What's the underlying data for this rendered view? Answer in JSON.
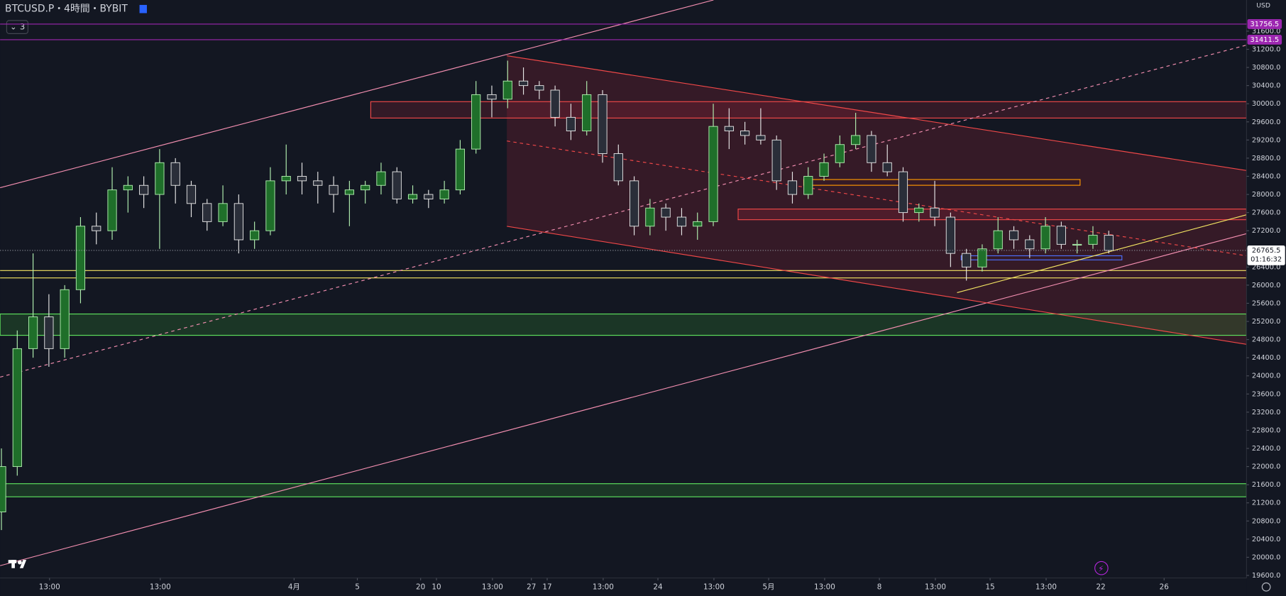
{
  "chart_data": {
    "type": "candlestick",
    "title": "BTCUSD.P・4時間・BYBIT",
    "indicator_count": 3,
    "currency": "USD",
    "up_color": "#b2f0b0",
    "down_color": "#e6e6e6",
    "x": [
      -6.5,
      -5.5,
      -4.5,
      -3.5,
      -2.5,
      -1.5,
      -0.5,
      0.5,
      1.5,
      2.5,
      3.5,
      4.5,
      5.5,
      6.5,
      7.5,
      8.5,
      9.5,
      10.5,
      11.5,
      12.5,
      13.5,
      14.5,
      15.5,
      16.5,
      17.5,
      18.5,
      19.5,
      20.5,
      21.5,
      22.5,
      23.5,
      24.5,
      25.5,
      26.5,
      27.5,
      28.5,
      29.5,
      30.5,
      31.5,
      32.5,
      33.5,
      34.5,
      35.5,
      36.5,
      37.5,
      38.5,
      39.5,
      40.5,
      41.5,
      42.5,
      43.5,
      44.5,
      45.5,
      46.5,
      47.5,
      48.5,
      49.5,
      50.5,
      51.5,
      52.5,
      53.5,
      54.5,
      55.5,
      56.5,
      57.5,
      58.5,
      59.5,
      60.5,
      61.5,
      62.5,
      63.5
    ],
    "open": [
      21000,
      22000,
      24600,
      25300,
      24600,
      25900,
      27300,
      27200,
      28100,
      28200,
      28000,
      28700,
      28200,
      27800,
      27400,
      27800,
      27000,
      27200,
      28300,
      28400,
      28300,
      28200,
      28000,
      28100,
      28200,
      28500,
      27900,
      28000,
      27900,
      28100,
      29000,
      30200,
      30100,
      30500,
      30400,
      30300,
      29700,
      29400,
      30200,
      28900,
      28300,
      27300,
      27700,
      27500,
      27300,
      27400,
      29500,
      29400,
      29300,
      29200,
      28300,
      28000,
      28400,
      28700,
      29100,
      29300,
      28700,
      28500,
      27600,
      27700,
      27500,
      26700,
      26400,
      26800,
      27200,
      27000,
      26800,
      27300,
      26900,
      26900,
      27100
    ],
    "high": [
      22400,
      25000,
      26700,
      25800,
      26000,
      27500,
      27600,
      28600,
      28400,
      28400,
      29000,
      28800,
      28300,
      27900,
      28200,
      28000,
      27400,
      28600,
      29100,
      28700,
      28500,
      28400,
      28300,
      28300,
      28700,
      28600,
      28200,
      28100,
      28300,
      29200,
      30500,
      30400,
      30950,
      30800,
      30500,
      30400,
      30000,
      30500,
      30300,
      29100,
      28400,
      27900,
      27800,
      27700,
      27600,
      30000,
      29900,
      29600,
      29900,
      29300,
      28500,
      28600,
      28900,
      29300,
      29800,
      29400,
      29100,
      28600,
      27800,
      28300,
      27600,
      26800,
      26900,
      27500,
      27300,
      27100,
      27500,
      27400,
      27000,
      27300,
      27200
    ],
    "low": [
      20600,
      21800,
      24400,
      24200,
      24400,
      25600,
      26900,
      27000,
      27600,
      27700,
      26800,
      27800,
      27500,
      27200,
      27300,
      26700,
      26800,
      27100,
      28000,
      28000,
      27800,
      27600,
      27300,
      27800,
      28000,
      27800,
      27800,
      27700,
      27800,
      28000,
      28900,
      29700,
      29900,
      30200,
      30100,
      29500,
      29200,
      29300,
      28700,
      28200,
      27100,
      27100,
      27200,
      27100,
      27000,
      27300,
      29000,
      29100,
      29100,
      28100,
      27800,
      27900,
      28300,
      28600,
      29000,
      28500,
      28400,
      27400,
      27400,
      27300,
      26400,
      26100,
      26300,
      26700,
      26800,
      26600,
      26700,
      26800,
      26700,
      26800,
      26700
    ],
    "close": [
      22000,
      24600,
      25300,
      24600,
      25900,
      27300,
      27200,
      28100,
      28200,
      28000,
      28700,
      28200,
      27800,
      27400,
      27800,
      27000,
      27200,
      28300,
      28400,
      28300,
      28200,
      28000,
      28100,
      28200,
      28500,
      27900,
      28000,
      27900,
      28100,
      29000,
      30200,
      30100,
      30500,
      30400,
      30300,
      29700,
      29400,
      30200,
      28900,
      28300,
      27300,
      27700,
      27500,
      27300,
      27400,
      29500,
      29400,
      29300,
      29200,
      28300,
      28000,
      28400,
      28700,
      29100,
      29300,
      28700,
      28500,
      27600,
      27700,
      27500,
      26700,
      26400,
      26800,
      27200,
      27000,
      26800,
      27300,
      26900,
      26900,
      27100,
      26765.5
    ],
    "xlim": [
      -6.584,
      72.21
    ],
    "ylim": [
      19544,
      32287
    ],
    "xticks": [
      {
        "value": -3.46,
        "label": "13:00"
      },
      20,
      {
        "value": 3.54,
        "label": "13:00"
      },
      27,
      {
        "value": 12,
        "label": "4月"
      },
      {
        "value": 16,
        "label": "5"
      },
      {
        "value": 21,
        "label": "10"
      },
      {
        "value": 24.54,
        "label": "13:00"
      },
      {
        "value": 28,
        "label": "17"
      },
      {
        "value": 31.54,
        "label": "13:00"
      },
      {
        "value": 35,
        "label": "24"
      },
      {
        "value": 38.54,
        "label": "13:00"
      },
      {
        "value": 42,
        "label": "5月"
      },
      {
        "value": 45.54,
        "label": "13:00"
      },
      {
        "value": 49,
        "label": "8"
      },
      {
        "value": 52.54,
        "label": "13:00"
      },
      {
        "value": 56,
        "label": "15"
      },
      {
        "value": 59.54,
        "label": "13:00"
      },
      {
        "value": 63,
        "label": "22"
      },
      {
        "value": 67,
        "label": "26"
      }
    ],
    "yticks": [
      {
        "value": 19600,
        "label": "19600.0"
      },
      {
        "value": 20000,
        "label": "20000.0"
      },
      {
        "value": 20400,
        "label": "20400.0"
      },
      {
        "value": 20800,
        "label": "20800.0"
      },
      {
        "value": 21200,
        "label": "21200.0"
      },
      {
        "value": 21600,
        "label": "21600.0"
      },
      {
        "value": 22000,
        "label": "22000.0"
      },
      {
        "value": 22400,
        "label": "22400.0"
      },
      {
        "value": 22800,
        "label": "22800.0"
      },
      {
        "value": 23200,
        "label": "23200.0"
      },
      {
        "value": 23600,
        "label": "23600.0"
      },
      {
        "value": 24000,
        "label": "24000.0"
      },
      {
        "value": 24400,
        "label": "24400.0"
      },
      {
        "value": 24800,
        "label": "24800.0"
      },
      {
        "value": 25200,
        "label": "25200.0"
      },
      {
        "value": 25600,
        "label": "25600.0"
      },
      {
        "value": 26000,
        "label": "26000.0"
      },
      {
        "value": 26400,
        "label": "26400.0"
      },
      {
        "value": 26800,
        "label": "26800.0"
      },
      {
        "value": 27200,
        "label": "27200.0"
      },
      {
        "value": 27600,
        "label": "27600.0"
      },
      {
        "value": 28000,
        "label": "28000.0"
      },
      {
        "value": 28400,
        "label": "28400.0"
      },
      {
        "value": 28800,
        "label": "28800.0"
      },
      {
        "value": 29200,
        "label": "29200.0"
      },
      {
        "value": 29600,
        "label": "29600.0"
      },
      {
        "value": 30000,
        "label": "30000.0"
      },
      {
        "value": 30400,
        "label": "30400.0"
      },
      {
        "value": 30800,
        "label": "30800.0"
      },
      {
        "value": 31200,
        "label": "31200.0"
      },
      {
        "value": 31600,
        "label": "31600.0"
      }
    ],
    "price_lines": [
      31756.5,
      31411.5
    ],
    "last_price": 26765.5,
    "countdown": "01:16:32"
  }
}
